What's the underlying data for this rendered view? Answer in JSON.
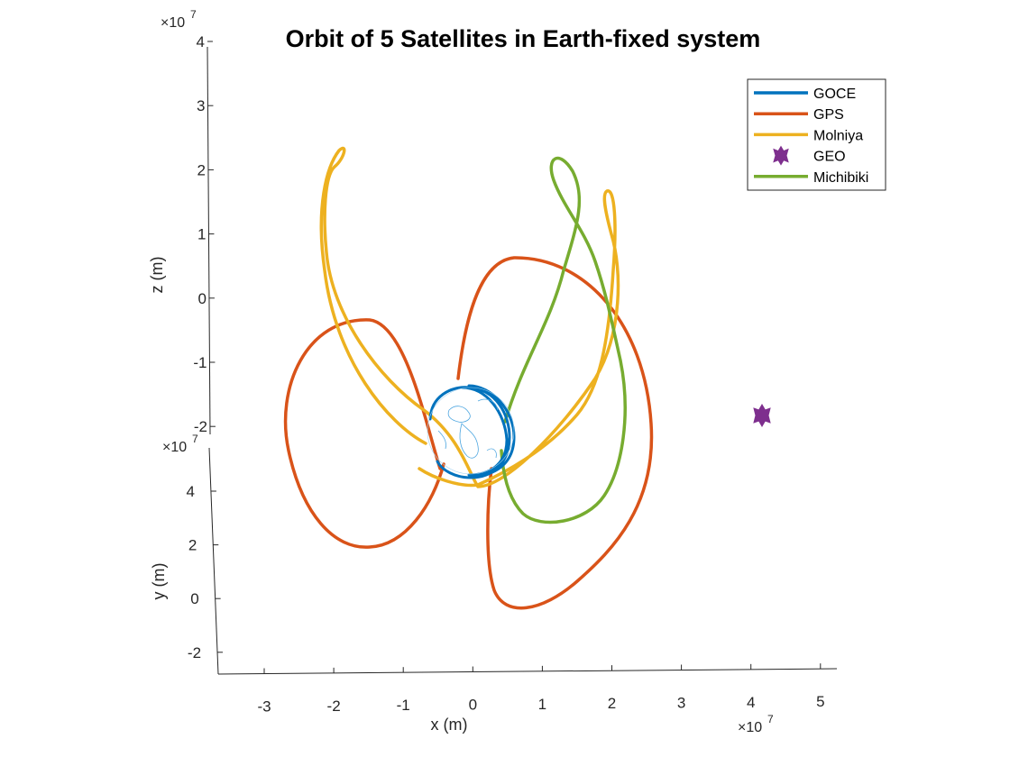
{
  "chart_data": {
    "type": "line",
    "title": "Orbit of 5 Satellites in Earth-fixed system",
    "xlabel": "x (m)",
    "ylabel": "y (m)",
    "zlabel": "z (m)",
    "axis_multiplier": "×10",
    "axis_multiplier_exponent": "7",
    "x_ticks": [
      "-3",
      "-2",
      "-1",
      "0",
      "1",
      "2",
      "3",
      "4",
      "5"
    ],
    "y_ticks": [
      "-2",
      "0",
      "2",
      "4"
    ],
    "z_ticks": [
      "-2",
      "-1",
      "0",
      "1",
      "2",
      "3",
      "4"
    ],
    "legend_placement": "top-right",
    "grid": false,
    "series": [
      {
        "name": "GOCE",
        "color": "#0072bd",
        "marker": "line"
      },
      {
        "name": "GPS",
        "color": "#d95319",
        "marker": "line"
      },
      {
        "name": "Molniya",
        "color": "#edb120",
        "marker": "line"
      },
      {
        "name": "GEO",
        "color": "#7e2f8e",
        "marker": "hexagram"
      },
      {
        "name": "Michibiki",
        "color": "#77ac30",
        "marker": "line"
      }
    ]
  }
}
